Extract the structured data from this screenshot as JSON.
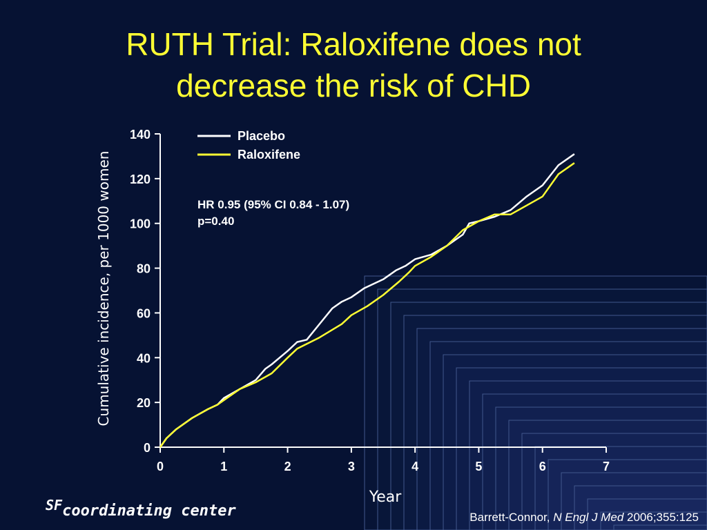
{
  "slide": {
    "title_line1": "RUTH Trial: Raloxifene does not",
    "title_line2": "decrease the risk of CHD",
    "footer_superscript": "SF",
    "footer_text": "coordinating center",
    "citation_author": "Barrett-Connor, ",
    "citation_journal": "N Engl J Med",
    "citation_ref": " 2006;355:125",
    "colors": {
      "background": "#061233",
      "title": "#ffff33",
      "placebo": "#ffffff",
      "raloxifene": "#ffff33"
    }
  },
  "chart_data": {
    "type": "line",
    "title": "",
    "xlabel": "Year",
    "ylabel": "Cumulative incidence, per 1000 women",
    "xlim": [
      0,
      7
    ],
    "ylim": [
      0,
      140
    ],
    "xticks": [
      0,
      1,
      2,
      3,
      4,
      5,
      6,
      7
    ],
    "yticks": [
      0,
      20,
      40,
      60,
      80,
      100,
      120,
      140
    ],
    "grid": false,
    "legend_position": "top-left",
    "annotation": [
      "HR 0.95 (95% CI 0.84 - 1.07)",
      "p=0.40"
    ],
    "series": [
      {
        "name": "Placebo",
        "color": "#ffffff",
        "x": [
          0,
          0.1,
          0.25,
          0.5,
          0.75,
          0.9,
          1.0,
          1.25,
          1.5,
          1.65,
          1.75,
          2.0,
          2.15,
          2.3,
          2.5,
          2.7,
          2.85,
          3.0,
          3.2,
          3.5,
          3.7,
          3.85,
          4.0,
          4.25,
          4.5,
          4.75,
          4.85,
          5.0,
          5.25,
          5.5,
          5.75,
          6.0,
          6.25,
          6.5
        ],
        "y": [
          0,
          4,
          8,
          13,
          17,
          19,
          22,
          26,
          30,
          35,
          37,
          43,
          47,
          48,
          55,
          62,
          65,
          67,
          71,
          75,
          79,
          81,
          84,
          86,
          90,
          95,
          100,
          101,
          103,
          106,
          112,
          117,
          126,
          131
        ]
      },
      {
        "name": "Raloxifene",
        "color": "#ffff33",
        "x": [
          0,
          0.1,
          0.25,
          0.5,
          0.75,
          0.9,
          1.0,
          1.25,
          1.5,
          1.75,
          2.0,
          2.15,
          2.5,
          2.85,
          3.0,
          3.25,
          3.5,
          3.75,
          3.9,
          4.0,
          4.25,
          4.5,
          4.75,
          5.0,
          5.25,
          5.5,
          5.75,
          6.0,
          6.25,
          6.5
        ],
        "y": [
          0,
          4,
          8,
          13,
          17,
          19,
          21,
          26,
          29,
          33,
          40,
          44,
          49,
          55,
          59,
          63,
          68,
          74,
          78,
          81,
          85,
          90,
          97,
          101,
          104,
          104,
          108,
          112,
          122,
          127
        ]
      }
    ]
  }
}
